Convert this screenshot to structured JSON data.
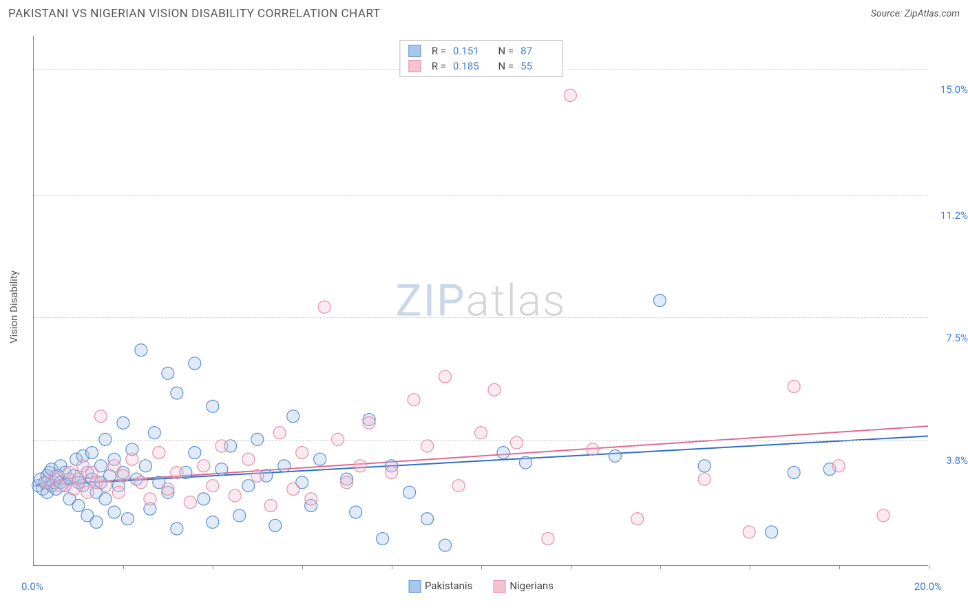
{
  "title": "PAKISTANI VS NIGERIAN VISION DISABILITY CORRELATION CHART",
  "source_label": "Source: ZipAtlas.com",
  "y_axis_title": "Vision Disability",
  "watermark_part1": "ZIP",
  "watermark_part2": "atlas",
  "chart": {
    "type": "scatter",
    "background_color": "#ffffff",
    "grid_color": "#cccccc",
    "axis_color": "#888888",
    "text_color": "#555555",
    "value_color": "#3b7dd8",
    "xlim": [
      0,
      20
    ],
    "ylim": [
      0,
      16
    ],
    "x_range_labels": [
      "0.0%",
      "20.0%"
    ],
    "x_tick_positions": [
      2,
      4,
      6,
      8,
      10,
      12,
      14,
      16,
      18,
      20
    ],
    "y_ticks": [
      {
        "v": 3.8,
        "label": "3.8%"
      },
      {
        "v": 7.5,
        "label": "7.5%"
      },
      {
        "v": 11.2,
        "label": "11.2%"
      },
      {
        "v": 15.0,
        "label": "15.0%"
      }
    ],
    "marker_radius": 9,
    "marker_stroke_width": 1.2,
    "marker_fill_opacity": 0.35,
    "trend_line_width": 2,
    "series": [
      {
        "name": "Pakistanis",
        "fill": "#a8c7ec",
        "stroke": "#5b8fd1",
        "trend_color": "#2f6fc7",
        "R": "0.151",
        "N": "87",
        "trend": {
          "x1": 0,
          "y1": 2.4,
          "x2": 20,
          "y2": 3.9
        },
        "points": [
          [
            0.1,
            2.4
          ],
          [
            0.15,
            2.6
          ],
          [
            0.2,
            2.3
          ],
          [
            0.25,
            2.5
          ],
          [
            0.3,
            2.7
          ],
          [
            0.3,
            2.2
          ],
          [
            0.35,
            2.8
          ],
          [
            0.4,
            2.4
          ],
          [
            0.4,
            2.9
          ],
          [
            0.45,
            2.5
          ],
          [
            0.5,
            2.6
          ],
          [
            0.5,
            2.3
          ],
          [
            0.55,
            2.7
          ],
          [
            0.6,
            2.5
          ],
          [
            0.6,
            3.0
          ],
          [
            0.7,
            2.4
          ],
          [
            0.7,
            2.8
          ],
          [
            0.8,
            2.6
          ],
          [
            0.8,
            2.0
          ],
          [
            0.9,
            2.7
          ],
          [
            0.95,
            3.2
          ],
          [
            1.0,
            2.5
          ],
          [
            1.0,
            1.8
          ],
          [
            1.1,
            3.3
          ],
          [
            1.1,
            2.4
          ],
          [
            1.2,
            2.8
          ],
          [
            1.2,
            1.5
          ],
          [
            1.3,
            3.4
          ],
          [
            1.3,
            2.6
          ],
          [
            1.4,
            2.2
          ],
          [
            1.4,
            1.3
          ],
          [
            1.5,
            3.0
          ],
          [
            1.5,
            2.5
          ],
          [
            1.6,
            3.8
          ],
          [
            1.6,
            2.0
          ],
          [
            1.7,
            2.7
          ],
          [
            1.8,
            3.2
          ],
          [
            1.8,
            1.6
          ],
          [
            1.9,
            2.4
          ],
          [
            2.0,
            4.3
          ],
          [
            2.0,
            2.8
          ],
          [
            2.1,
            1.4
          ],
          [
            2.2,
            3.5
          ],
          [
            2.3,
            2.6
          ],
          [
            2.4,
            6.5
          ],
          [
            2.5,
            3.0
          ],
          [
            2.6,
            1.7
          ],
          [
            2.7,
            4.0
          ],
          [
            2.8,
            2.5
          ],
          [
            3.0,
            5.8
          ],
          [
            3.0,
            2.2
          ],
          [
            3.2,
            5.2
          ],
          [
            3.2,
            1.1
          ],
          [
            3.4,
            2.8
          ],
          [
            3.6,
            6.1
          ],
          [
            3.6,
            3.4
          ],
          [
            3.8,
            2.0
          ],
          [
            4.0,
            4.8
          ],
          [
            4.0,
            1.3
          ],
          [
            4.2,
            2.9
          ],
          [
            4.4,
            3.6
          ],
          [
            4.6,
            1.5
          ],
          [
            4.8,
            2.4
          ],
          [
            5.0,
            3.8
          ],
          [
            5.2,
            2.7
          ],
          [
            5.4,
            1.2
          ],
          [
            5.6,
            3.0
          ],
          [
            5.8,
            4.5
          ],
          [
            6.0,
            2.5
          ],
          [
            6.2,
            1.8
          ],
          [
            6.4,
            3.2
          ],
          [
            7.0,
            2.6
          ],
          [
            7.2,
            1.6
          ],
          [
            7.5,
            4.4
          ],
          [
            7.8,
            0.8
          ],
          [
            8.0,
            3.0
          ],
          [
            8.4,
            2.2
          ],
          [
            8.8,
            1.4
          ],
          [
            9.2,
            0.6
          ],
          [
            10.5,
            3.4
          ],
          [
            11.0,
            3.1
          ],
          [
            13.0,
            3.3
          ],
          [
            14.0,
            8.0
          ],
          [
            15.0,
            3.0
          ],
          [
            16.5,
            1.0
          ],
          [
            17.0,
            2.8
          ],
          [
            17.8,
            2.9
          ]
        ]
      },
      {
        "name": "Nigerians",
        "fill": "#f4c3d0",
        "stroke": "#e38fa8",
        "trend_color": "#e06a8f",
        "R": "0.185",
        "N": "55",
        "trend": {
          "x1": 0,
          "y1": 2.4,
          "x2": 20,
          "y2": 4.2
        },
        "points": [
          [
            0.3,
            2.5
          ],
          [
            0.5,
            2.7
          ],
          [
            0.6,
            2.4
          ],
          [
            0.8,
            2.8
          ],
          [
            0.9,
            2.3
          ],
          [
            1.0,
            2.6
          ],
          [
            1.1,
            3.0
          ],
          [
            1.2,
            2.2
          ],
          [
            1.3,
            2.8
          ],
          [
            1.4,
            2.5
          ],
          [
            1.5,
            4.5
          ],
          [
            1.6,
            2.4
          ],
          [
            1.8,
            3.0
          ],
          [
            1.9,
            2.2
          ],
          [
            2.0,
            2.7
          ],
          [
            2.2,
            3.2
          ],
          [
            2.4,
            2.5
          ],
          [
            2.6,
            2.0
          ],
          [
            2.8,
            3.4
          ],
          [
            3.0,
            2.3
          ],
          [
            3.2,
            2.8
          ],
          [
            3.5,
            1.9
          ],
          [
            3.8,
            3.0
          ],
          [
            4.0,
            2.4
          ],
          [
            4.2,
            3.6
          ],
          [
            4.5,
            2.1
          ],
          [
            4.8,
            3.2
          ],
          [
            5.0,
            2.7
          ],
          [
            5.3,
            1.8
          ],
          [
            5.5,
            4.0
          ],
          [
            5.8,
            2.3
          ],
          [
            6.0,
            3.4
          ],
          [
            6.2,
            2.0
          ],
          [
            6.5,
            7.8
          ],
          [
            6.8,
            3.8
          ],
          [
            7.0,
            2.5
          ],
          [
            7.3,
            3.0
          ],
          [
            7.5,
            4.3
          ],
          [
            8.0,
            2.8
          ],
          [
            8.5,
            5.0
          ],
          [
            8.8,
            3.6
          ],
          [
            9.2,
            5.7
          ],
          [
            9.5,
            2.4
          ],
          [
            10.0,
            4.0
          ],
          [
            10.3,
            5.3
          ],
          [
            10.8,
            3.7
          ],
          [
            11.5,
            0.8
          ],
          [
            12.0,
            14.2
          ],
          [
            12.5,
            3.5
          ],
          [
            13.5,
            1.4
          ],
          [
            15.0,
            2.6
          ],
          [
            16.0,
            1.0
          ],
          [
            17.0,
            5.4
          ],
          [
            18.0,
            3.0
          ],
          [
            19.0,
            1.5
          ]
        ]
      }
    ],
    "bottom_legend": [
      {
        "label": "Pakistanis",
        "fill": "#a8c7ec",
        "stroke": "#5b8fd1"
      },
      {
        "label": "Nigerians",
        "fill": "#f4c3d0",
        "stroke": "#e38fa8"
      }
    ],
    "top_legend_labels": {
      "R": "R =",
      "N": "N ="
    }
  }
}
